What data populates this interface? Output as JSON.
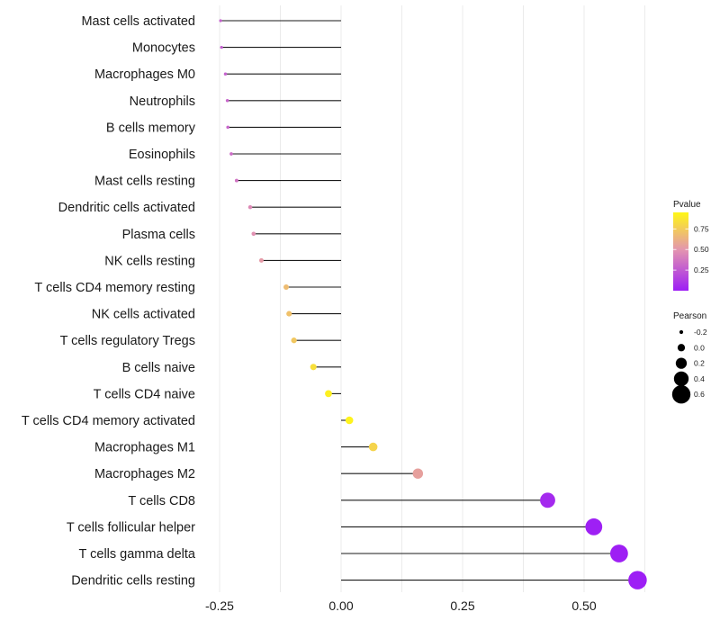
{
  "chart_data": {
    "type": "lollipop",
    "title": "",
    "xlabel": "",
    "ylabel": "",
    "xlim": [
      -0.27,
      0.63
    ],
    "xticks": [
      -0.25,
      0.0,
      0.25,
      0.5
    ],
    "xtick_labels": [
      "-0.25",
      "0.00",
      "0.25",
      "0.50"
    ],
    "categories": [
      "Mast cells activated",
      "Monocytes",
      "Macrophages M0",
      "Neutrophils",
      "B cells memory",
      "Eosinophils",
      "Mast cells resting",
      "Dendritic cells activated",
      "Plasma cells",
      "NK cells resting",
      "T cells CD4 memory resting",
      "NK cells activated",
      "T cells regulatory  Tregs",
      "B cells naive",
      "T cells CD4 naive",
      "T cells CD4 memory activated",
      "Macrophages M1",
      "Macrophages M2",
      "T cells CD8",
      "T cells follicular helper",
      "T cells gamma delta",
      "Dendritic cells resting"
    ],
    "pearson": [
      -0.248,
      -0.246,
      -0.238,
      -0.234,
      -0.233,
      -0.226,
      -0.215,
      -0.187,
      -0.18,
      -0.164,
      -0.113,
      -0.107,
      -0.097,
      -0.057,
      -0.026,
      0.017,
      0.066,
      0.158,
      0.425,
      0.52,
      0.572,
      0.61
    ],
    "pvalue": [
      0.28,
      0.27,
      0.28,
      0.3,
      0.3,
      0.33,
      0.36,
      0.45,
      0.48,
      0.52,
      0.68,
      0.7,
      0.73,
      0.84,
      0.92,
      0.93,
      0.79,
      0.55,
      0.05,
      0.01,
      0.004,
      0.002
    ],
    "legend": {
      "color": {
        "title": "Pvalue",
        "ticks": [
          0.25,
          0.5,
          0.75
        ],
        "tick_labels": [
          "0.25",
          "0.50",
          "0.75"
        ],
        "range": [
          0.0,
          0.95
        ],
        "low_color": "#9d1ef5",
        "mid_color": "#e394b0",
        "high_color": "#fff716"
      },
      "size": {
        "title": "Pearson",
        "values": [
          -0.2,
          0.0,
          0.2,
          0.4,
          0.6
        ],
        "labels": [
          "-0.2",
          "0.0",
          "0.2",
          "0.4",
          "0.6"
        ]
      }
    }
  }
}
